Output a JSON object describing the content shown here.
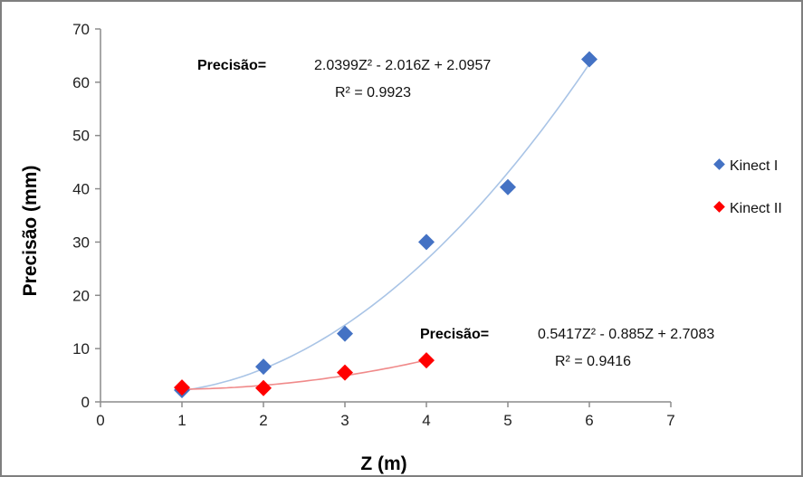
{
  "chart_data": {
    "type": "scatter",
    "xlabel": "Z (m)",
    "ylabel": "Precisão (mm)",
    "xlim": [
      0,
      7
    ],
    "ylim": [
      0,
      70
    ],
    "xticks": [
      "0",
      "1",
      "2",
      "3",
      "4",
      "5",
      "6",
      "7"
    ],
    "yticks": [
      "0",
      "10",
      "20",
      "30",
      "40",
      "50",
      "60",
      "70"
    ],
    "grid": false,
    "legend_position": "right",
    "series": [
      {
        "name": "Kinect I",
        "marker_color": "#4472c4",
        "trend_color": "#a9c4e6",
        "x": [
          1,
          2,
          3,
          4,
          5,
          6
        ],
        "y": [
          2.2,
          6.6,
          12.8,
          30.0,
          40.3,
          64.3
        ],
        "trendline": {
          "a": 2.0399,
          "b": -2.016,
          "c": 2.0957,
          "x_range": [
            1,
            6
          ]
        },
        "equation_label": "Precisão=",
        "equation_text": "2.0399Z² - 2.016Z + 2.0957",
        "r2_text": "R² = 0.9923"
      },
      {
        "name": "Kinect II",
        "marker_color": "#ff0000",
        "trend_color": "#f08a8a",
        "x": [
          1,
          2,
          3,
          4
        ],
        "y": [
          2.7,
          2.6,
          5.5,
          7.8
        ],
        "trendline": {
          "a": 0.5417,
          "b": -0.885,
          "c": 2.7083,
          "x_range": [
            1,
            4
          ]
        },
        "equation_label": "Precisão=",
        "equation_text": "0.5417Z² - 0.885Z + 2.7083",
        "r2_text": "R² = 0.9416"
      }
    ]
  }
}
